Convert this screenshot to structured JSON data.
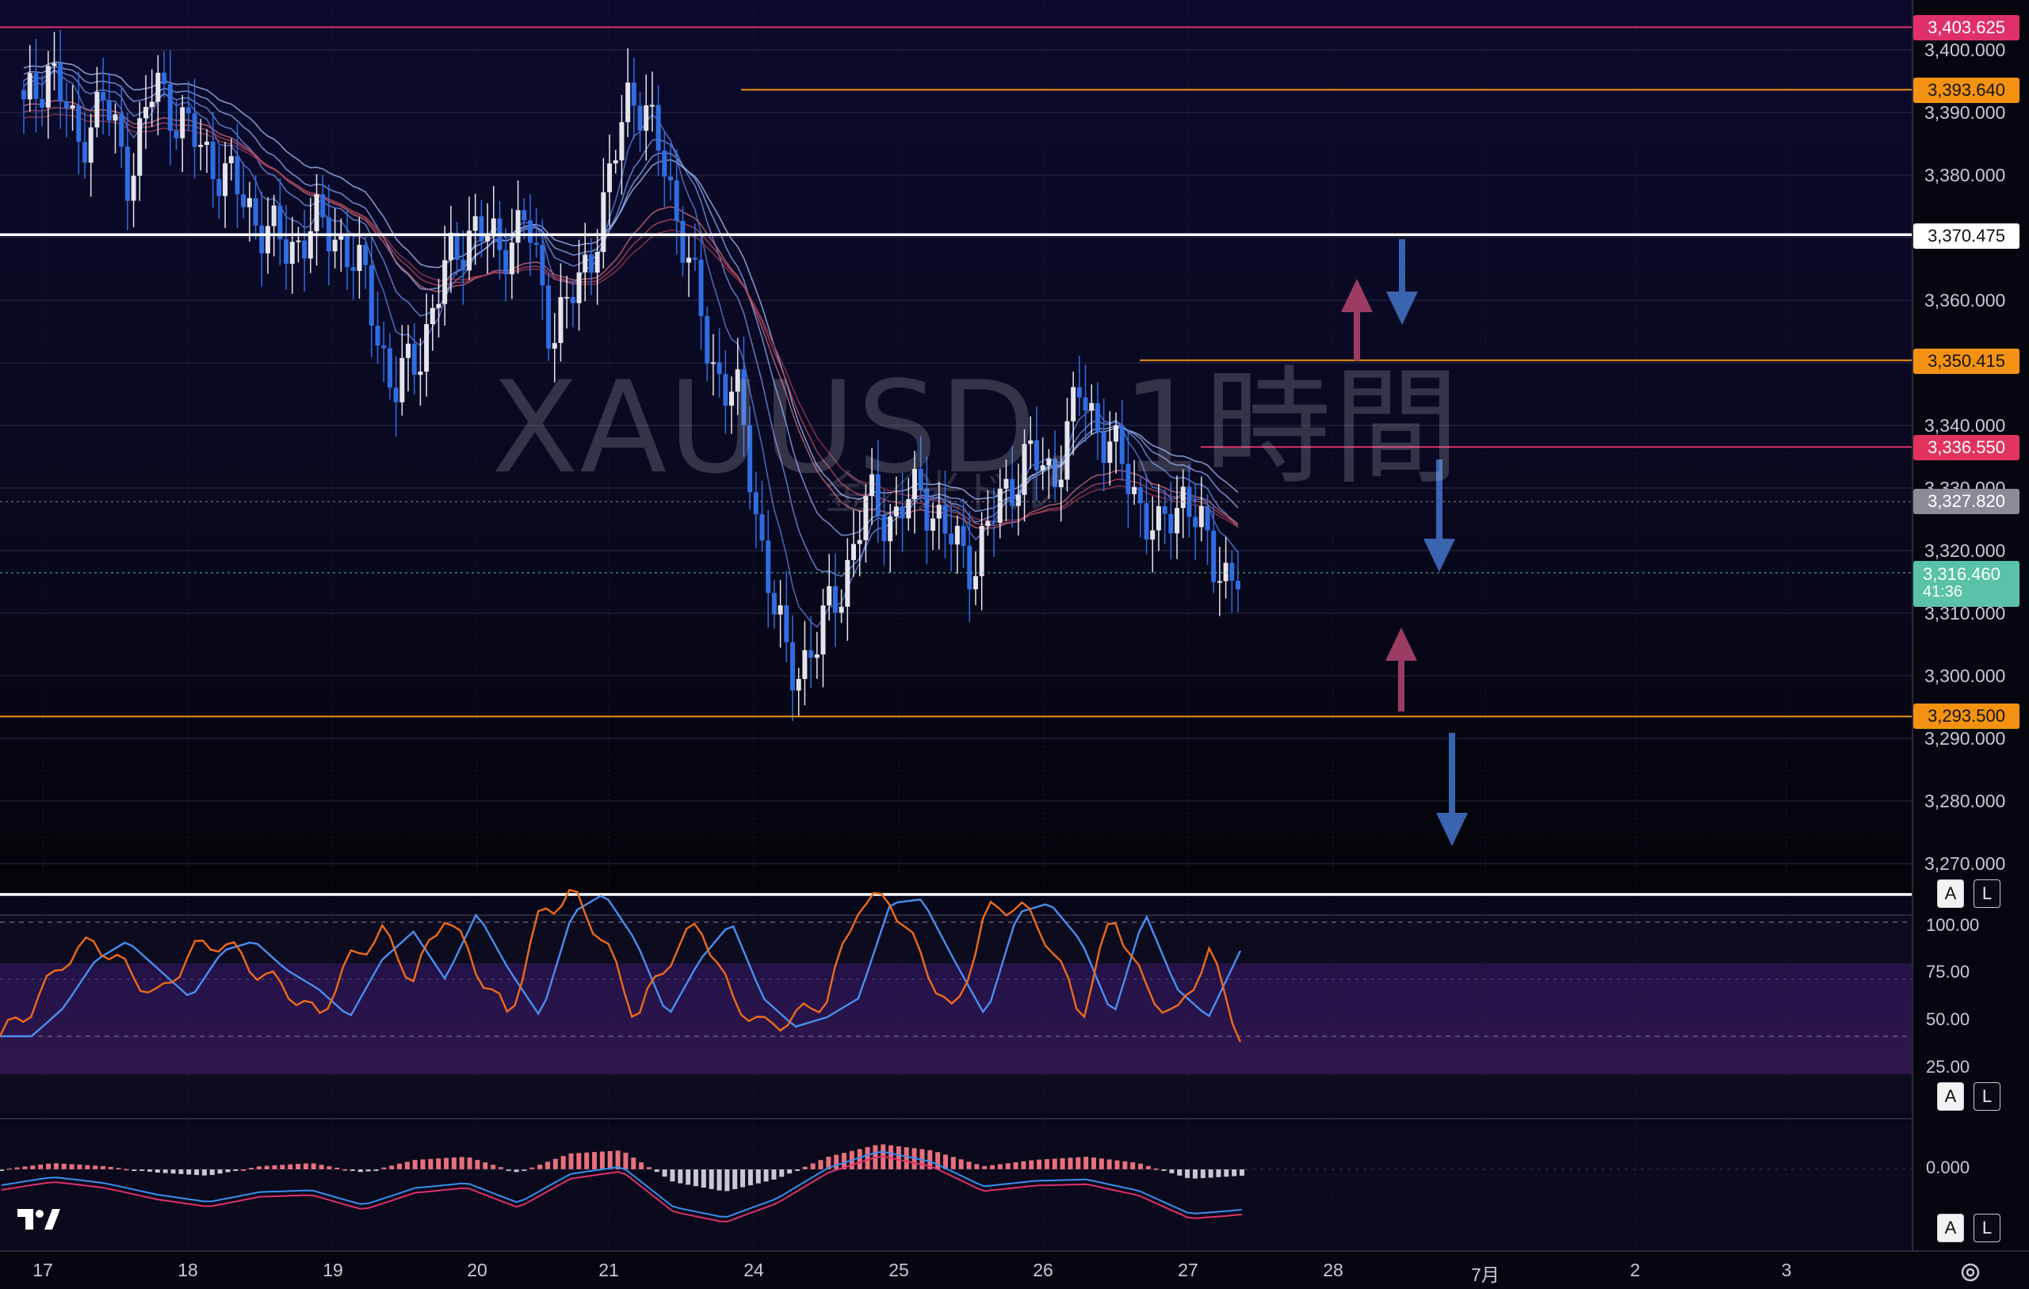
{
  "chart": {
    "symbol": "XAUUSD",
    "interval": "1時間",
    "watermark_main": "XAUUSD, 1時間",
    "watermark_sub": "金／米ドル",
    "current_price": "3,316.460",
    "countdown": "41:36",
    "colors": {
      "background": "#07071a",
      "bull_candle": "#e4e4ec",
      "bear_candle": "#2f6de1",
      "accent_orange": "#f39212",
      "accent_pink": "#e0306a",
      "current_green": "#59c2a7"
    }
  },
  "price_axis": {
    "ticks": [
      "3,400.000",
      "3,390.000",
      "3,380.000",
      "3,360.000",
      "3,340.000",
      "3,330.000",
      "3,320.000",
      "3,310.000",
      "3,300.000",
      "3,290.000",
      "3,280.000",
      "3,270.000"
    ]
  },
  "price_tags": {
    "pink_top": "3,403.625",
    "orange_1": "3,393.640",
    "white_1": "3,370.475",
    "orange_2": "3,350.415",
    "red_1": "3,336.550",
    "grey_1": "3,327.820",
    "orange_3": "3,293.500"
  },
  "stoch_axis": {
    "ticks": [
      "100.00",
      "75.00",
      "50.00",
      "25.00"
    ]
  },
  "macd_axis": {
    "ticks": [
      "0.000"
    ]
  },
  "scale_buttons": {
    "auto": "A",
    "log": "L"
  },
  "time_axis": {
    "labels": [
      "17",
      "18",
      "19",
      "20",
      "21",
      "24",
      "25",
      "26",
      "27",
      "28",
      "7月",
      "2",
      "3"
    ]
  },
  "chart_data": {
    "type": "candlestick",
    "series_name": "XAUUSD",
    "timeframe": "1時間",
    "x_labels": [
      "17",
      "18",
      "19",
      "20",
      "21",
      "24",
      "25",
      "26",
      "27",
      "28",
      "7月",
      "2",
      "3"
    ],
    "ylim": [
      3265,
      3410
    ],
    "horizontal_levels": [
      3403.625,
      3393.64,
      3370.475,
      3350.415,
      3336.55,
      3293.5
    ],
    "close_path": [
      3390,
      3398,
      3385,
      3392,
      3380,
      3395,
      3388,
      3383,
      3378,
      3372,
      3368,
      3372,
      3370,
      3362,
      3345,
      3352,
      3365,
      3372,
      3368,
      3373,
      3355,
      3362,
      3375,
      3395,
      3385,
      3370,
      3350,
      3345,
      3320,
      3300,
      3305,
      3315,
      3328,
      3325,
      3330,
      3322,
      3318,
      3328,
      3335,
      3332,
      3345,
      3338,
      3330,
      3322,
      3330,
      3318,
      3316
    ],
    "stoch_k_approx": [
      20,
      35,
      60,
      70,
      55,
      40,
      65,
      70,
      55,
      45,
      30,
      60,
      75,
      50,
      85,
      55,
      30,
      85,
      95,
      70,
      30,
      60,
      80,
      40,
      25,
      30,
      40,
      90,
      92,
      60,
      30,
      85,
      90,
      70,
      30,
      85,
      45,
      30,
      65,
      20
    ],
    "macd_hist_approx": [
      0.0,
      0.2,
      0.1,
      -0.1,
      -0.2,
      0.1,
      0.2,
      -0.1,
      0.3,
      0.4,
      -0.1,
      0.5,
      0.6,
      -0.4,
      -0.7,
      -0.3,
      0.4,
      0.8,
      0.6,
      0.1,
      0.3,
      0.4,
      0.2,
      -0.3,
      -0.2
    ]
  }
}
